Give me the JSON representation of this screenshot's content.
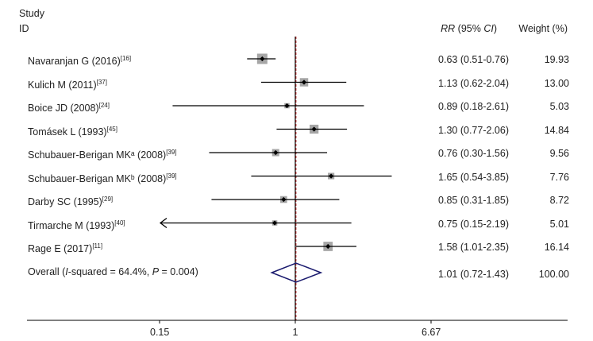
{
  "header": {
    "study_label": "Study",
    "id_label": "ID",
    "rr_label_italic": "RR",
    "rr_label_rest": " (95% ",
    "ci_label_italic": "CI",
    "rr_label_close": ")",
    "weight_label": "Weight (%)"
  },
  "chart_data": {
    "type": "forest",
    "xscale": "log",
    "reference_line": 1,
    "xticks": [
      0.15,
      1,
      6.67
    ],
    "xtick_labels": [
      "0.15",
      "1",
      "6.67"
    ],
    "studies": [
      {
        "name": "Navaranjan G (2016)",
        "sup": "[16]",
        "rr": 0.63,
        "lo": 0.51,
        "hi": 0.76,
        "rr_text": "0.63 (0.51-0.76)",
        "weight": "19.93"
      },
      {
        "name": "Kulich M (2011)",
        "sup": "[37]",
        "rr": 1.13,
        "lo": 0.62,
        "hi": 2.04,
        "rr_text": "1.13 (0.62-2.04)",
        "weight": "13.00"
      },
      {
        "name": "Boice JD (2008)",
        "sup": "[24]",
        "rr": 0.89,
        "lo": 0.18,
        "hi": 2.61,
        "rr_text": "0.89 (0.18-2.61)",
        "weight": "5.03"
      },
      {
        "name": "Tomásek L (1993)",
        "sup": "[45]",
        "rr": 1.3,
        "lo": 0.77,
        "hi": 2.06,
        "rr_text": "1.30 (0.77-2.06)",
        "weight": "14.84"
      },
      {
        "name": "Schubauer-Berigan MKᵃ (2008)",
        "sup": "[39]",
        "rr": 0.76,
        "lo": 0.3,
        "hi": 1.56,
        "rr_text": "0.76 (0.30-1.56)",
        "weight": "9.56"
      },
      {
        "name": "Schubauer-Berigan MKᵇ (2008)",
        "sup": "[39]",
        "rr": 1.65,
        "lo": 0.54,
        "hi": 3.85,
        "rr_text": "1.65 (0.54-3.85)",
        "weight": "7.76"
      },
      {
        "name": "Darby SC (1995)",
        "sup": "[29]",
        "rr": 0.85,
        "lo": 0.31,
        "hi": 1.85,
        "rr_text": "0.85 (0.31-1.85)",
        "weight": "8.72"
      },
      {
        "name": "Tirmarche M (1993)",
        "sup": "[40]",
        "rr": 0.75,
        "lo": 0.15,
        "hi": 2.19,
        "rr_text": "0.75 (0.15-2.19)",
        "weight": "5.01",
        "lower_truncated": true
      },
      {
        "name": "Rage E (2017)",
        "sup": "[11]",
        "rr": 1.58,
        "lo": 1.01,
        "hi": 2.35,
        "rr_text": "1.58 (1.01-2.35)",
        "weight": "16.14"
      }
    ],
    "overall": {
      "label_prefix": "Overall (",
      "label_i": "I",
      "label_mid": "-squared = 64.4%, ",
      "label_p": "P",
      "label_suffix": " = 0.004)",
      "rr": 1.01,
      "lo": 0.72,
      "hi": 1.43,
      "rr_text": "1.01 (0.72-1.43)",
      "weight": "100.00"
    },
    "colors": {
      "ci_line": "#000000",
      "box": "#a6a6a6",
      "point": "#000000",
      "reference": "#000000",
      "overall_line": "#b22222",
      "diamond": "#1a1a6e"
    }
  }
}
